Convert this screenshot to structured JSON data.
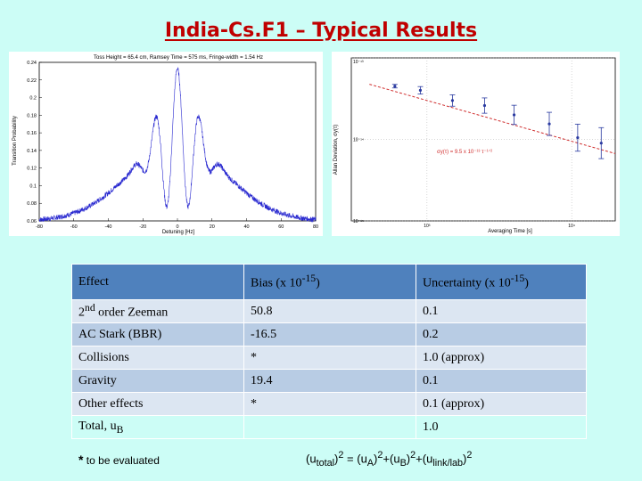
{
  "title": "India-Cs.F1 – Typical Results",
  "ramsey": {
    "top_label": "Toss Height = 65.4 cm, Ramsey Time = 575 ms, Fringe-width = 1.54 Hz",
    "ylabel": "Transition Probability",
    "xlabel": "Detuning [Hz]",
    "yticks": [
      "0.24",
      "0.22",
      "0.2",
      "0.18",
      "0.16",
      "0.14",
      "0.12",
      "0.1",
      "0.08",
      "0.06"
    ],
    "xticks": [
      "-80",
      "-60",
      "-40",
      "-20",
      "0",
      "20",
      "40",
      "60",
      "80"
    ]
  },
  "allan": {
    "ylabel": "Allan Deviation, σy(τ)",
    "xlabel": "Averaging Time [s]",
    "yticks": [
      "10⁻¹³",
      "10⁻¹⁴",
      "10⁻¹⁵"
    ],
    "xticks": [
      "10³",
      "10⁴"
    ],
    "fit_label": "σy(τ) = 9.5 x 10⁻¹³ τ⁻¹ᐟ²"
  },
  "table": {
    "headers": [
      {
        "label": "Effect"
      },
      {
        "label": "Bias (x 10",
        "sup": "-15",
        "suffix": ")"
      },
      {
        "label": "Uncertainty (x 10",
        "sup": "-15",
        "suffix": ")"
      }
    ],
    "rows": [
      {
        "effect": "order Zeeman",
        "effect_prefix": "2",
        "effect_sup": "nd",
        "bias": "50.8",
        "uncertainty": "0.1"
      },
      {
        "effect": "AC Stark (BBR)",
        "bias": "-16.5",
        "uncertainty": "0.2"
      },
      {
        "effect": "Collisions",
        "bias": "*",
        "uncertainty": "1.0 (approx)"
      },
      {
        "effect": "Gravity",
        "bias": "19.4",
        "uncertainty": "0.1"
      },
      {
        "effect": "Other effects",
        "bias": "*",
        "uncertainty": "0.1 (approx)"
      },
      {
        "effect": "Total, u",
        "effect_sub": "B",
        "bias": "",
        "uncertainty": "1.0"
      }
    ]
  },
  "footnote": {
    "star": "*",
    "text": "to be evaluated"
  },
  "formula": {
    "lhs": "(u",
    "lhs_sub": "total",
    "rhs": "= (u",
    "a_sub": "A",
    "plus_u": "+(u",
    "b_sub": "B",
    "link_sub": "link/lab",
    "exp": "2",
    "close": ")"
  },
  "chart_data": [
    {
      "type": "line",
      "title": "Toss Height = 65.4 cm, Ramsey Time = 575 ms, Fringe-width = 1.54 Hz",
      "xlabel": "Detuning [Hz]",
      "ylabel": "Transition Probability",
      "xlim": [
        -80,
        80
      ],
      "ylim": [
        0.06,
        0.24
      ],
      "description_series": "Ramsey fringe, envelope ~0.06 to ~0.235, fringe period ~1.54 Hz"
    },
    {
      "type": "scatter",
      "xlabel": "Averaging Time [s]",
      "ylabel": "Allan Deviation, σy(τ)",
      "x_log": true,
      "y_log": true,
      "xlim": [
        300,
        20000
      ],
      "ylim": [
        1e-15,
        1e-13
      ],
      "series": [
        {
          "name": "measured",
          "x": [
            600,
            900,
            1500,
            2500,
            4000,
            7000,
            11000,
            16000
          ],
          "y": [
            4.5e-14,
            4e-14,
            3e-14,
            2.6e-14,
            2e-14,
            1.55e-14,
            1.05e-14,
            9e-15
          ]
        },
        {
          "name": "fit",
          "x": [
            400,
            20000
          ],
          "y": [
            4.75e-14,
            6.7e-15
          ]
        }
      ]
    }
  ]
}
